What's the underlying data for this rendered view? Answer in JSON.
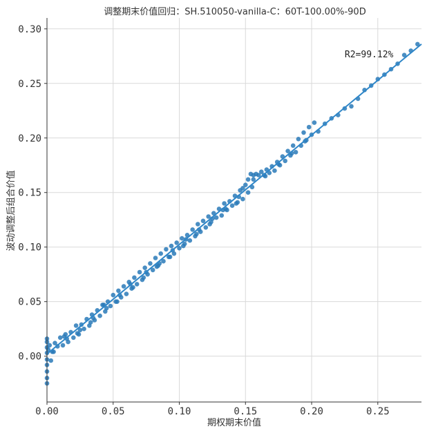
{
  "chart_data": {
    "type": "scatter",
    "title": "调整期末价值回归：SH.510050-vanilla-C：60T-100.00%-90D",
    "xlabel": "期权期末价值",
    "ylabel": "波动调整后组合价值",
    "xlim": [
      0.0,
      0.283
    ],
    "ylim": [
      -0.042,
      0.31
    ],
    "xticks": [
      "0.00",
      "0.05",
      "0.10",
      "0.15",
      "0.20",
      "0.25"
    ],
    "yticks": [
      "0.00",
      "0.05",
      "0.10",
      "0.15",
      "0.20",
      "0.25",
      "0.30"
    ],
    "grid": true,
    "annotation": "R2=99.12%",
    "annotation_at": {
      "x": 0.225,
      "y": 0.274
    },
    "colors": {
      "points": "#2a7ab8",
      "fit_line": "#2e86c8"
    },
    "fit_line": {
      "x": [
        0.0,
        0.283
      ],
      "y": [
        0.002,
        0.286
      ]
    },
    "points": {
      "x": [
        0.0,
        0.0,
        0.0,
        0.0,
        0.0,
        0.0,
        0.0,
        0.0,
        0.0,
        0.001,
        0.002,
        0.004,
        0.006,
        0.008,
        0.01,
        0.012,
        0.014,
        0.016,
        0.018,
        0.02,
        0.022,
        0.024,
        0.026,
        0.028,
        0.03,
        0.032,
        0.034,
        0.036,
        0.038,
        0.04,
        0.042,
        0.044,
        0.046,
        0.048,
        0.05,
        0.052,
        0.054,
        0.056,
        0.058,
        0.06,
        0.062,
        0.064,
        0.066,
        0.068,
        0.07,
        0.072,
        0.074,
        0.076,
        0.078,
        0.08,
        0.082,
        0.084,
        0.086,
        0.088,
        0.09,
        0.092,
        0.094,
        0.096,
        0.098,
        0.1,
        0.102,
        0.104,
        0.106,
        0.108,
        0.11,
        0.112,
        0.114,
        0.116,
        0.118,
        0.12,
        0.122,
        0.124,
        0.126,
        0.128,
        0.13,
        0.132,
        0.134,
        0.136,
        0.138,
        0.14,
        0.142,
        0.144,
        0.146,
        0.148,
        0.15,
        0.152,
        0.154,
        0.156,
        0.158,
        0.16,
        0.162,
        0.164,
        0.166,
        0.168,
        0.17,
        0.172,
        0.174,
        0.176,
        0.178,
        0.18,
        0.182,
        0.184,
        0.186,
        0.188,
        0.19,
        0.192,
        0.194,
        0.196,
        0.198,
        0.2,
        0.202,
        0.205,
        0.21,
        0.215,
        0.22,
        0.225,
        0.23,
        0.235,
        0.24,
        0.245,
        0.25,
        0.255,
        0.26,
        0.265,
        0.27,
        0.275,
        0.28,
        0.005,
        0.015,
        0.025,
        0.035,
        0.045,
        0.055,
        0.065,
        0.075,
        0.085,
        0.095,
        0.105,
        0.115,
        0.125,
        0.135,
        0.145,
        0.155,
        0.165,
        0.175,
        0.185,
        0.195,
        0.003,
        0.013,
        0.023,
        0.033,
        0.043,
        0.053,
        0.063,
        0.073,
        0.083,
        0.093,
        0.103,
        0.113,
        0.123,
        0.133,
        0.143,
        0.148,
        0.152,
        0.156
      ],
      "y": [
        -0.025,
        -0.02,
        -0.014,
        -0.008,
        -0.003,
        0.003,
        0.008,
        0.013,
        0.016,
        0.006,
        0.01,
        0.004,
        0.012,
        0.009,
        0.017,
        0.01,
        0.02,
        0.013,
        0.022,
        0.017,
        0.028,
        0.02,
        0.029,
        0.025,
        0.034,
        0.028,
        0.038,
        0.033,
        0.042,
        0.037,
        0.047,
        0.041,
        0.05,
        0.046,
        0.056,
        0.05,
        0.06,
        0.054,
        0.064,
        0.057,
        0.068,
        0.062,
        0.072,
        0.066,
        0.077,
        0.07,
        0.081,
        0.075,
        0.085,
        0.079,
        0.09,
        0.083,
        0.094,
        0.087,
        0.098,
        0.091,
        0.101,
        0.094,
        0.104,
        0.099,
        0.108,
        0.103,
        0.111,
        0.106,
        0.116,
        0.11,
        0.121,
        0.114,
        0.124,
        0.118,
        0.128,
        0.123,
        0.131,
        0.127,
        0.135,
        0.129,
        0.14,
        0.134,
        0.142,
        0.138,
        0.147,
        0.141,
        0.152,
        0.144,
        0.157,
        0.162,
        0.167,
        0.166,
        0.167,
        0.166,
        0.169,
        0.166,
        0.171,
        0.168,
        0.174,
        0.17,
        0.178,
        0.175,
        0.183,
        0.179,
        0.188,
        0.184,
        0.193,
        0.187,
        0.199,
        0.193,
        0.205,
        0.198,
        0.21,
        0.203,
        0.214,
        0.206,
        0.213,
        0.218,
        0.221,
        0.227,
        0.229,
        0.236,
        0.244,
        0.248,
        0.254,
        0.258,
        0.263,
        0.268,
        0.276,
        0.28,
        0.286,
        0.004,
        0.016,
        0.024,
        0.035,
        0.044,
        0.056,
        0.063,
        0.077,
        0.085,
        0.097,
        0.107,
        0.116,
        0.126,
        0.135,
        0.146,
        0.155,
        0.165,
        0.176,
        0.186,
        0.197,
        -0.004,
        0.018,
        0.021,
        0.031,
        0.047,
        0.05,
        0.066,
        0.072,
        0.082,
        0.091,
        0.101,
        0.112,
        0.121,
        0.134,
        0.14,
        0.154,
        0.15,
        0.162
      ]
    }
  }
}
